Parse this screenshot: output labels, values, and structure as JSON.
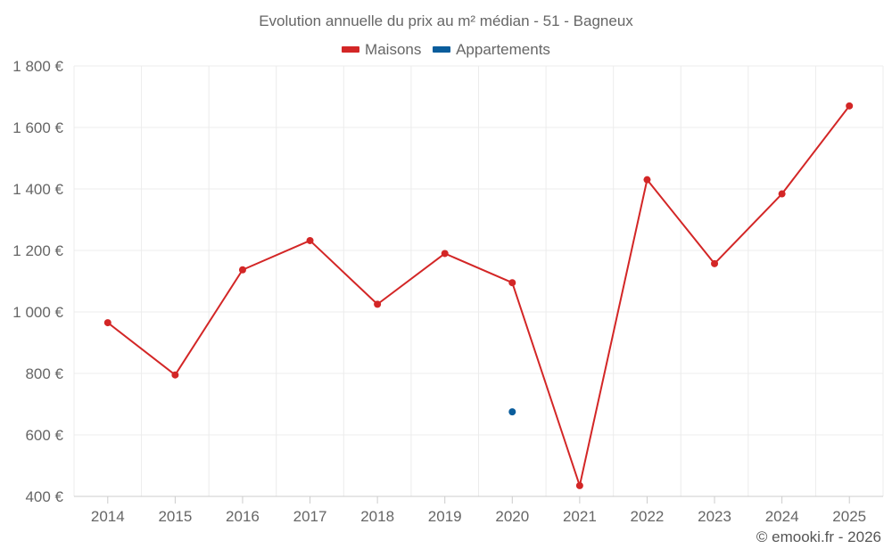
{
  "title": "Evolution annuelle du prix au m² médian - 51 - Bagneux",
  "credit": "© emooki.fr - 2026",
  "colors": {
    "maisons": "#d32626",
    "appartements": "#0a5d9c",
    "grid": "#ececec",
    "axis": "#cccccc"
  },
  "legend": [
    {
      "label": "Maisons",
      "color": "#d32626"
    },
    {
      "label": "Appartements",
      "color": "#0a5d9c"
    }
  ],
  "chart_data": {
    "type": "line",
    "title": "Evolution annuelle du prix au m² médian - 51 - Bagneux",
    "categories": [
      "2014",
      "2015",
      "2016",
      "2017",
      "2018",
      "2019",
      "2020",
      "2021",
      "2022",
      "2023",
      "2024",
      "2025"
    ],
    "series": [
      {
        "name": "Maisons",
        "color": "#d32626",
        "values": [
          965,
          795,
          1137,
          1232,
          1025,
          1190,
          1095,
          435,
          1430,
          1157,
          1384,
          1670
        ]
      },
      {
        "name": "Appartements",
        "color": "#0a5d9c",
        "values": [
          null,
          null,
          null,
          null,
          null,
          null,
          675,
          null,
          null,
          null,
          null,
          null
        ]
      }
    ],
    "ylim": [
      400,
      1800
    ],
    "yticks": [
      400,
      600,
      800,
      1000,
      1200,
      1400,
      1600,
      1800
    ],
    "ytick_labels": [
      "400 €",
      "600 €",
      "800 €",
      "1 000 €",
      "1 200 €",
      "1 400 €",
      "1 600 €",
      "1 800 €"
    ],
    "grid": true,
    "legend_position": "top-center"
  }
}
